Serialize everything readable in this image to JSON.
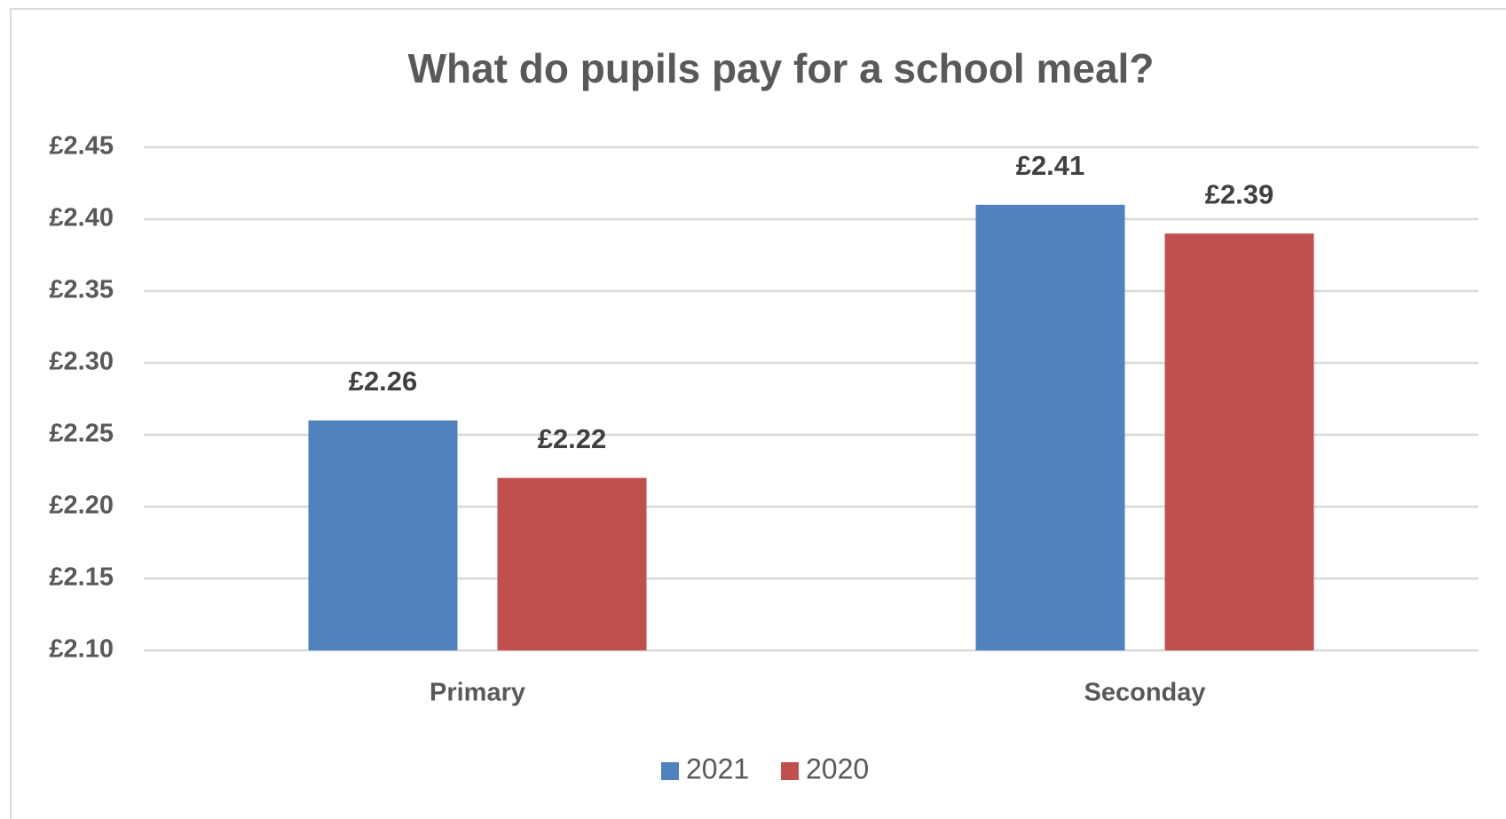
{
  "chart_data": {
    "type": "bar",
    "title": "What do pupils pay for a school meal?",
    "categories": [
      "Primary",
      "Seconday"
    ],
    "series": [
      {
        "name": "2021",
        "color": "#4f81bd",
        "values": [
          2.26,
          2.41
        ],
        "value_labels": [
          "£2.26",
          "£2.41"
        ]
      },
      {
        "name": "2020",
        "color": "#c0504d",
        "values": [
          2.22,
          2.39
        ],
        "value_labels": [
          "£2.22",
          "£2.39"
        ]
      }
    ],
    "ylim": [
      2.1,
      2.45
    ],
    "yticks": [
      {
        "value": 2.1,
        "label": "£2.10"
      },
      {
        "value": 2.15,
        "label": "£2.15"
      },
      {
        "value": 2.2,
        "label": "£2.20"
      },
      {
        "value": 2.25,
        "label": "£2.25"
      },
      {
        "value": 2.3,
        "label": "£2.30"
      },
      {
        "value": 2.35,
        "label": "£2.35"
      },
      {
        "value": 2.4,
        "label": "£2.40"
      },
      {
        "value": 2.45,
        "label": "£2.45"
      }
    ],
    "grid": true,
    "legend": "bottom"
  }
}
